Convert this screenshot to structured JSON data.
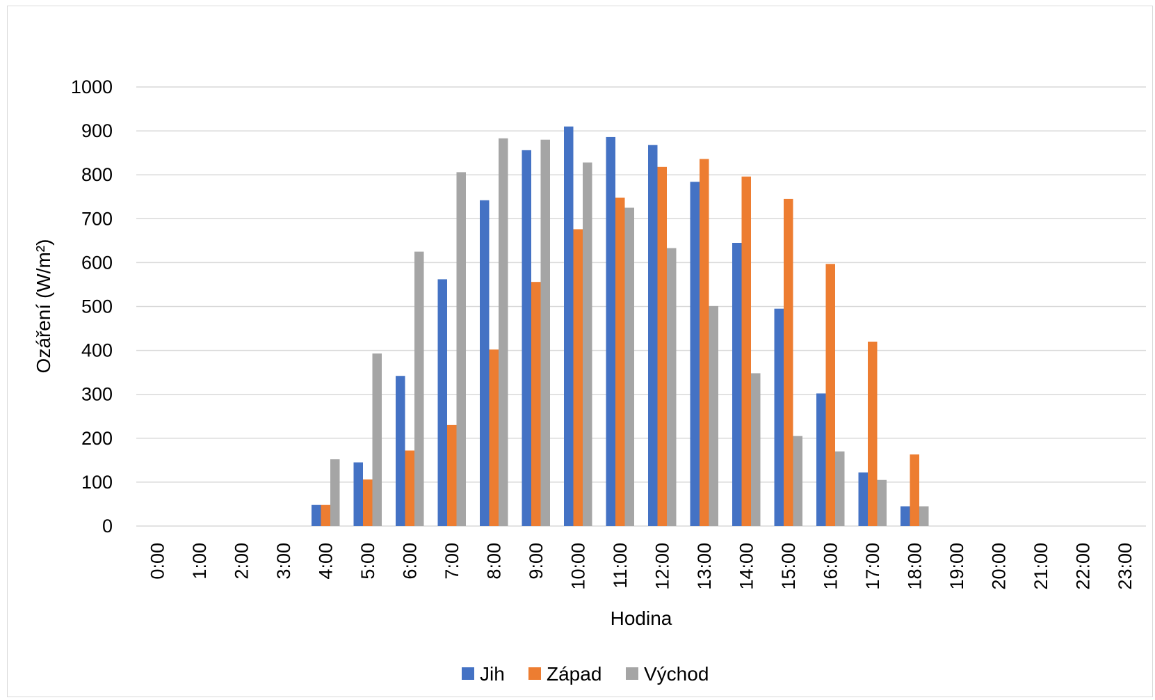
{
  "chart_data": {
    "type": "bar",
    "title": "",
    "xlabel": "Hodina",
    "ylabel": "Ozáření (W/m²)",
    "ylim": [
      0,
      1000
    ],
    "yticks": [
      0,
      100,
      200,
      300,
      400,
      500,
      600,
      700,
      800,
      900,
      1000
    ],
    "grid": true,
    "legend_position": "bottom",
    "categories": [
      "0:00",
      "1:00",
      "2:00",
      "3:00",
      "4:00",
      "5:00",
      "6:00",
      "7:00",
      "8:00",
      "9:00",
      "10:00",
      "11:00",
      "12:00",
      "13:00",
      "14:00",
      "15:00",
      "16:00",
      "17:00",
      "18:00",
      "19:00",
      "20:00",
      "21:00",
      "22:00",
      "23:00"
    ],
    "series": [
      {
        "name": "Jih",
        "color": "#4472c4",
        "values": [
          0,
          0,
          0,
          0,
          48,
          145,
          342,
          562,
          742,
          856,
          910,
          886,
          868,
          784,
          645,
          495,
          302,
          122,
          45,
          0,
          0,
          0,
          0,
          0
        ]
      },
      {
        "name": "Západ",
        "color": "#ed7d31",
        "values": [
          0,
          0,
          0,
          0,
          48,
          106,
          172,
          230,
          402,
          556,
          676,
          748,
          818,
          836,
          796,
          745,
          597,
          420,
          163,
          0,
          0,
          0,
          0,
          0
        ]
      },
      {
        "name": "Východ",
        "color": "#a5a5a5",
        "values": [
          0,
          0,
          0,
          0,
          152,
          393,
          625,
          806,
          883,
          880,
          828,
          725,
          633,
          501,
          348,
          205,
          170,
          105,
          45,
          0,
          0,
          0,
          0,
          0
        ]
      }
    ]
  }
}
